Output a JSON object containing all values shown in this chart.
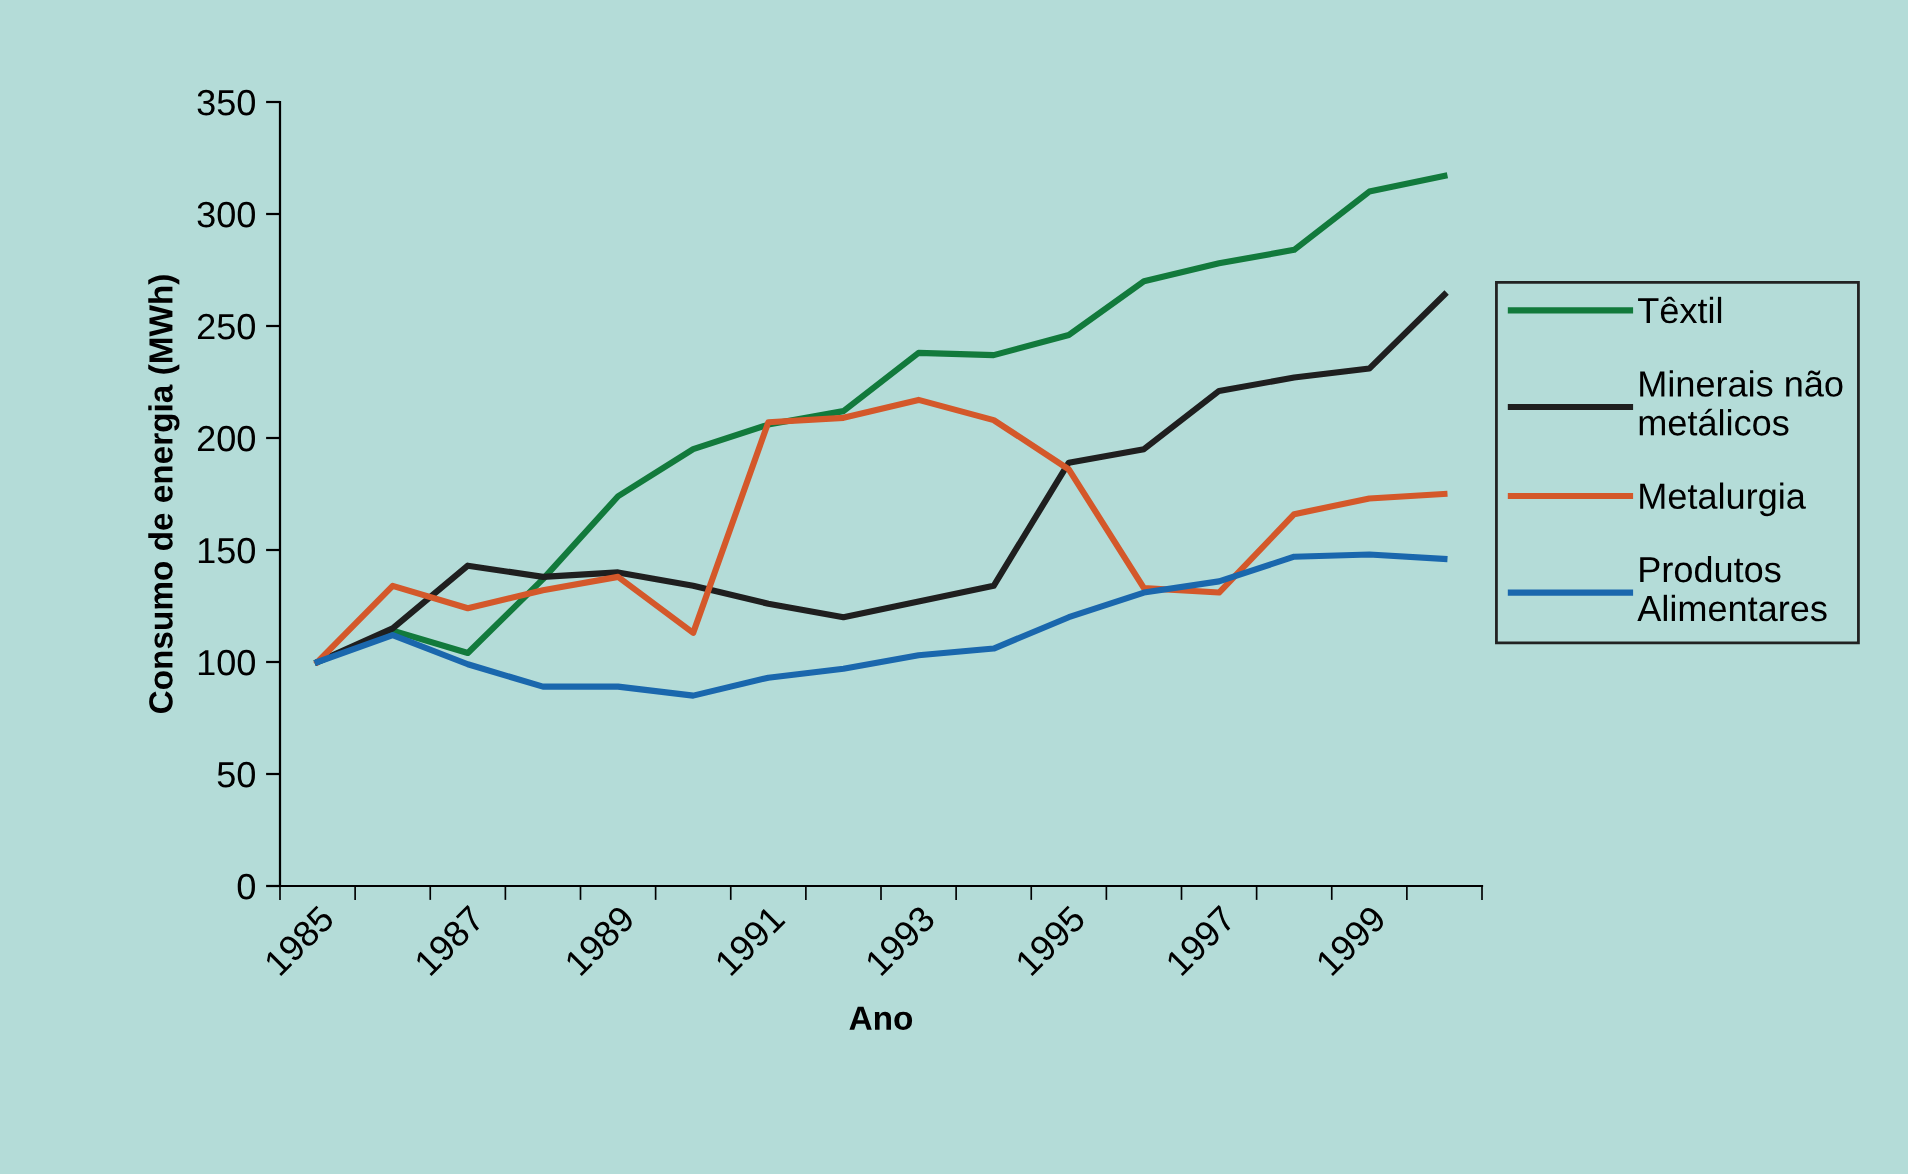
{
  "chart_data": {
    "type": "line",
    "xlabel": "Ano",
    "ylabel": "Consumo de energia (MWh)",
    "categories": [
      "1985",
      null,
      "1987",
      null,
      "1989",
      null,
      "1991",
      null,
      "1993",
      null,
      "1995",
      null,
      "1997",
      null,
      "1999",
      null
    ],
    "series": [
      {
        "name": "Têxtil",
        "color": "#127a3c",
        "values": [
          100,
          114,
          104,
          137,
          174,
          195,
          206,
          212,
          238,
          237,
          246,
          270,
          278,
          284,
          310,
          317
        ]
      },
      {
        "name": "Minerais não\nmetálicos",
        "color": "#1f1f1f",
        "values": [
          100,
          115,
          143,
          138,
          140,
          134,
          126,
          120,
          127,
          134,
          189,
          195,
          221,
          227,
          231,
          264
        ]
      },
      {
        "name": "Metalurgia",
        "color": "#d4582a",
        "values": [
          100,
          134,
          124,
          132,
          138,
          113,
          207,
          209,
          217,
          208,
          186,
          133,
          131,
          166,
          173,
          175
        ]
      },
      {
        "name": "Produtos\nAlimentares",
        "color": "#1a67ad",
        "values": [
          100,
          112,
          99,
          89,
          89,
          85,
          93,
          97,
          103,
          106,
          120,
          131,
          136,
          147,
          148,
          146
        ]
      }
    ],
    "ylim": [
      0,
      350
    ],
    "yticks": [
      0,
      50,
      100,
      150,
      200,
      250,
      300,
      350
    ],
    "grid": false,
    "legend": "right",
    "marker": "none",
    "line_style": "solid"
  }
}
